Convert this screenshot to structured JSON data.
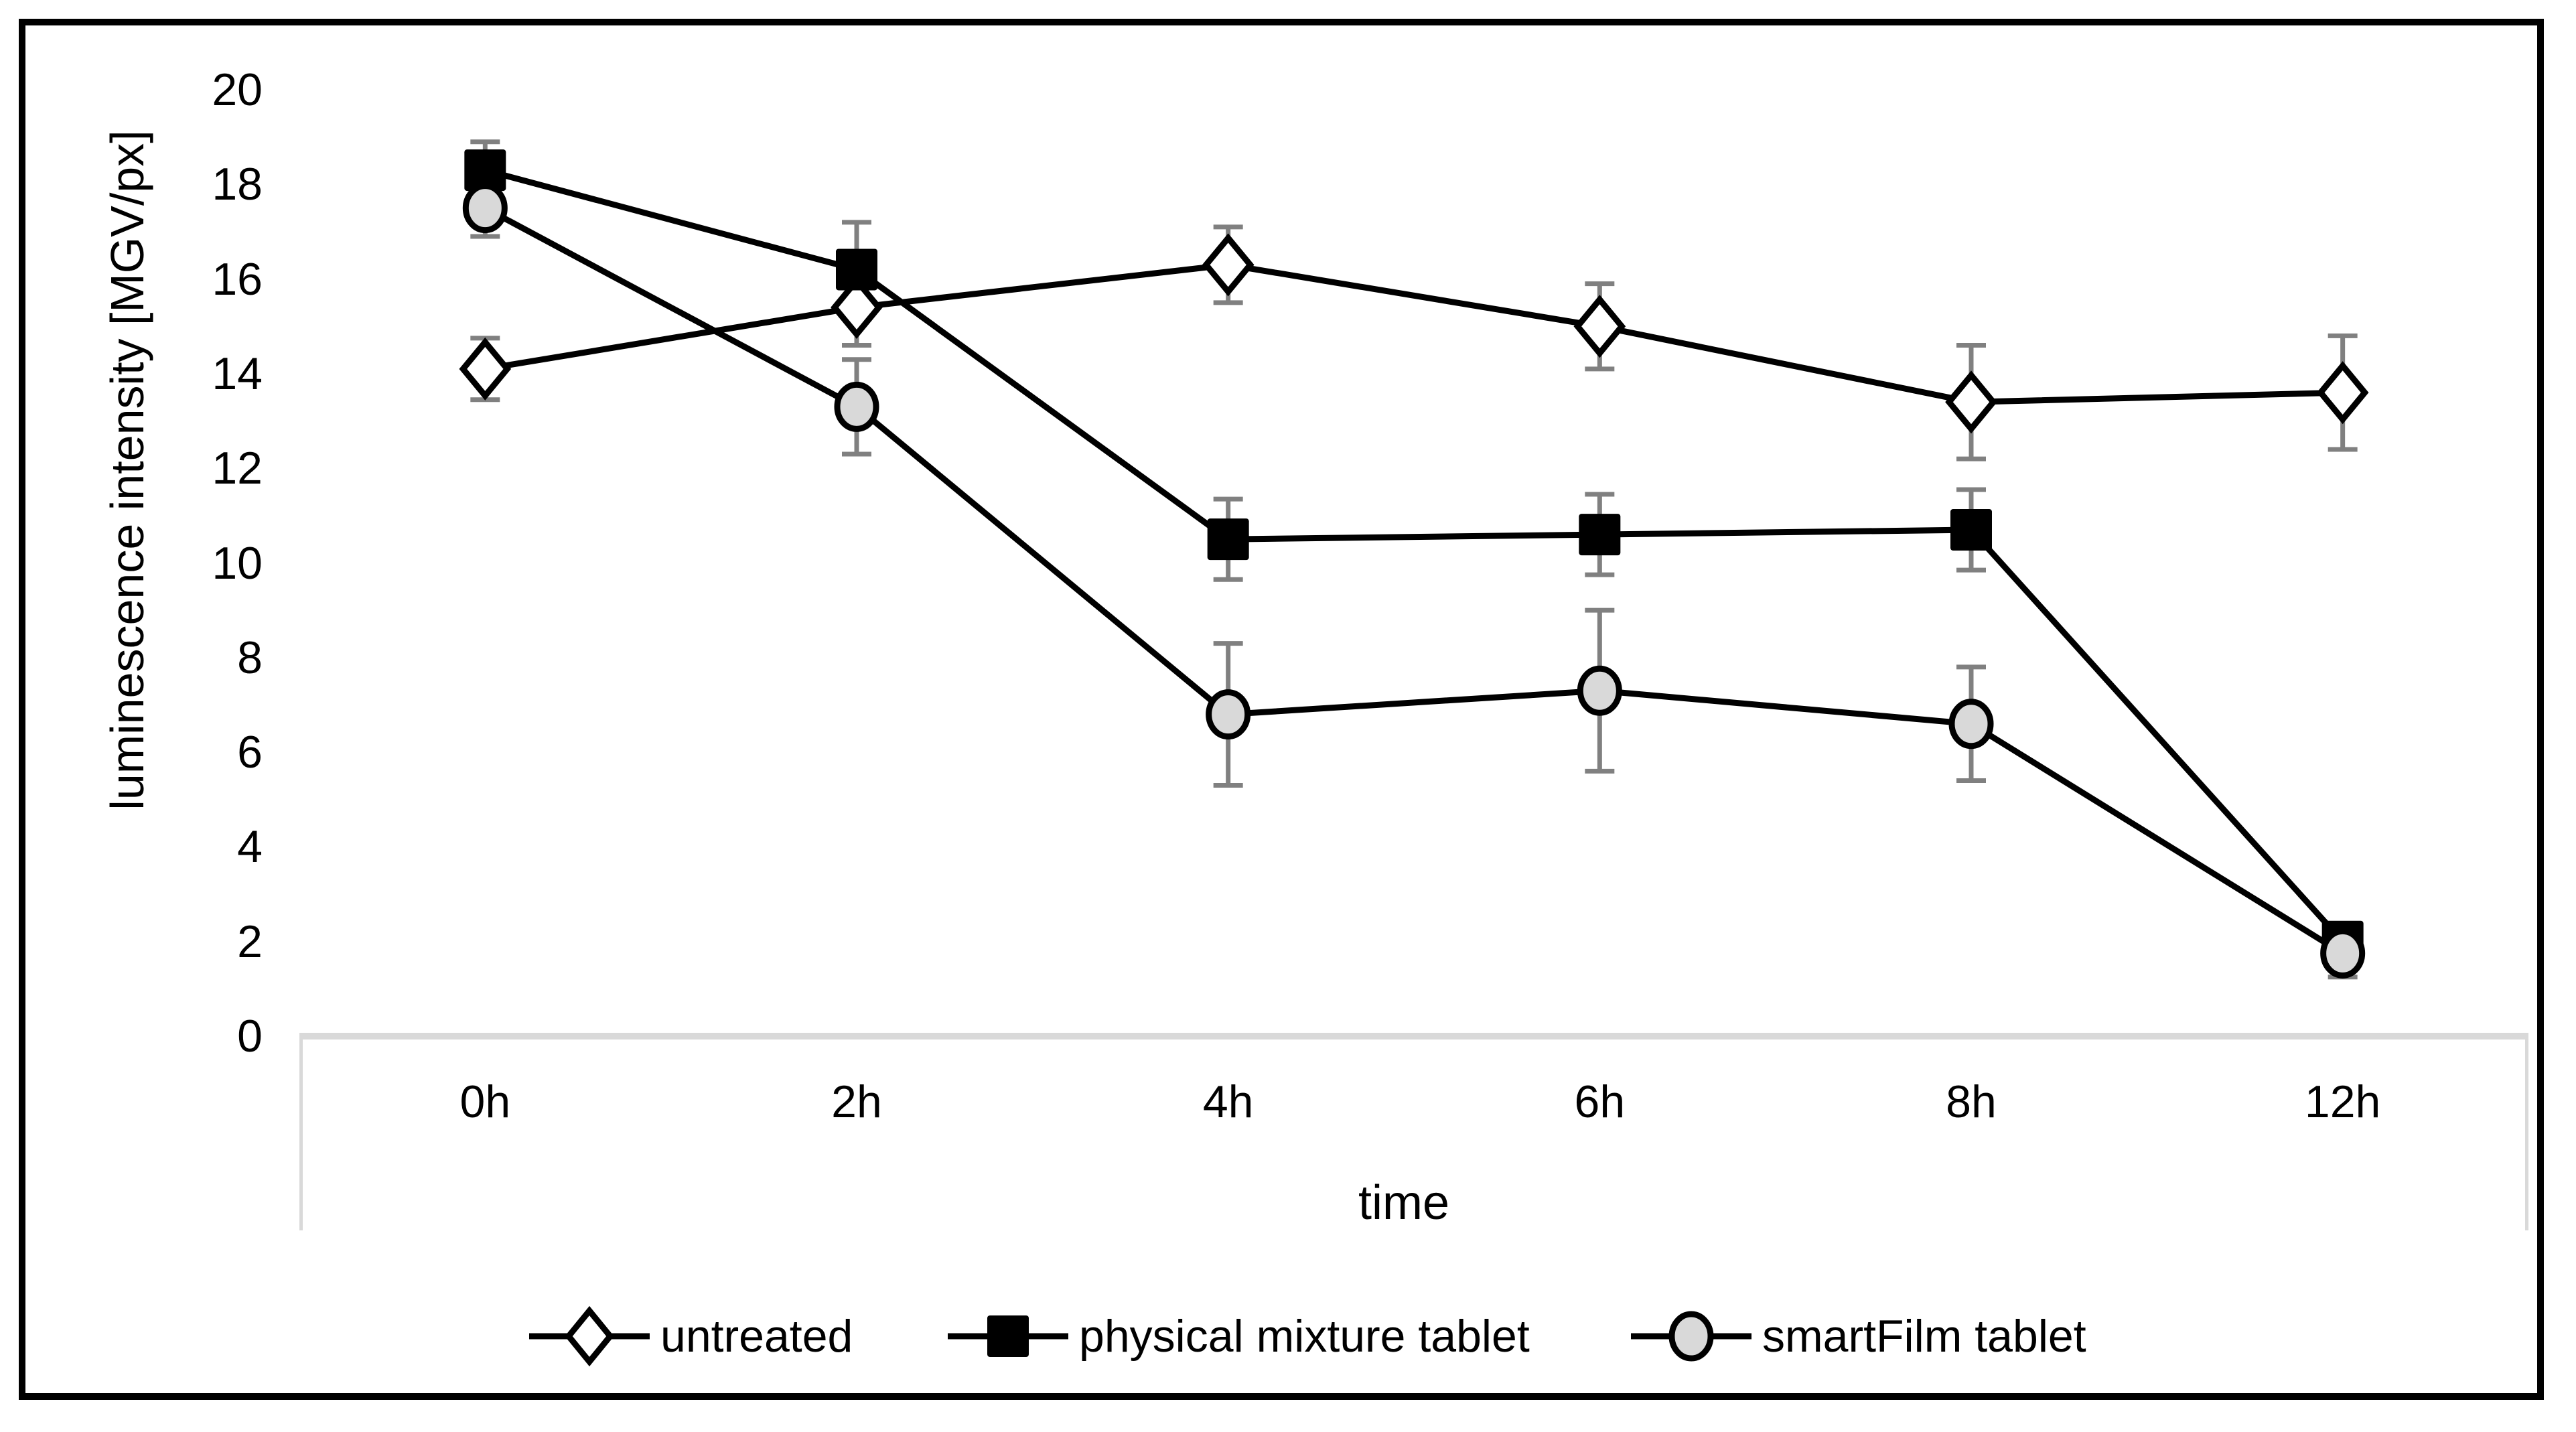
{
  "figure": {
    "background": "#ffffff",
    "border_color": "#000000"
  },
  "chart_data": {
    "type": "line",
    "title": "",
    "xlabel": "time",
    "ylabel": "luminescence intensity [MGV/px]",
    "categories": [
      "0h",
      "2h",
      "4h",
      "6h",
      "8h",
      "12h"
    ],
    "ylim": [
      0,
      20
    ],
    "ytick_step": 2,
    "ytick_labels": [
      "0",
      "2",
      "4",
      "6",
      "8",
      "10",
      "12",
      "14",
      "16",
      "18",
      "20"
    ],
    "grid": false,
    "legend_position": "bottom",
    "series": [
      {
        "name": "untreated",
        "marker": "open-diamond",
        "marker_fill": "#ffffff",
        "values": [
          14.1,
          15.4,
          16.3,
          15.0,
          13.4,
          13.6
        ],
        "errors": [
          0.65,
          0.8,
          0.8,
          0.9,
          1.2,
          1.2
        ]
      },
      {
        "name": "physical mixture tablet",
        "marker": "filled-square",
        "marker_fill": "#000000",
        "values": [
          18.3,
          16.2,
          10.5,
          10.6,
          10.7,
          2.0
        ],
        "errors": [
          0.6,
          1.0,
          0.85,
          0.85,
          0.85,
          0.3
        ]
      },
      {
        "name": "smartFilm tablet",
        "marker": "filled-circle",
        "marker_fill": "#d9d9d9",
        "values": [
          17.5,
          13.3,
          6.8,
          7.3,
          6.6,
          1.75
        ],
        "errors": [
          0.6,
          1.0,
          1.5,
          1.7,
          1.2,
          0.5
        ]
      }
    ],
    "colors": {
      "line": "#000000",
      "error_bar": "#808080",
      "axis_band": "#d9d9d9",
      "text": "#000000"
    }
  }
}
